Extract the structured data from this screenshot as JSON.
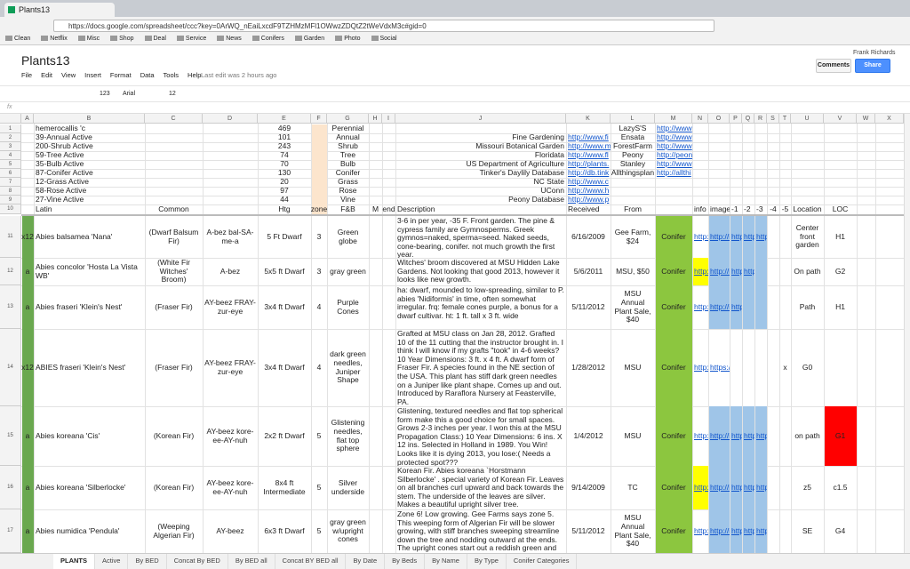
{
  "browser": {
    "tab": "Plants13",
    "url": "https://docs.google.com/spreadsheet/ccc?key=0ArWQ_nEaiLxcdF9TZHMzMFl1OWwzZDQtZ2tWeVdxM3c#gid=0",
    "bookmarks": [
      "Clean",
      "Netflix",
      "Misc",
      "Shop",
      "Deal",
      "Service",
      "News",
      "Conifers",
      "Garden",
      "Photo",
      "Social"
    ]
  },
  "header": {
    "title": "Plants13",
    "menu": [
      "File",
      "Edit",
      "View",
      "Insert",
      "Format",
      "Data",
      "Tools",
      "Help"
    ],
    "last_edit": "Last edit was 2 hours ago",
    "user": "Frank Richards",
    "comments": "Comments",
    "share": "Share"
  },
  "toolbar": {
    "number_format": "123",
    "font": "Arial",
    "font_size": "12",
    "formula_label": "fx"
  },
  "columns": [
    "A",
    "B",
    "C",
    "D",
    "E",
    "F",
    "G",
    "H",
    "I",
    "J",
    "K",
    "L",
    "M",
    "N",
    "O",
    "P",
    "Q",
    "R",
    "S",
    "T",
    "U",
    "V",
    "W",
    "X"
  ],
  "rows": [
    {
      "number": "1",
      "cells": {
        "B": "hemerocallis 'c",
        "E": "469",
        "G": "Perennial",
        "L": "LazyS'S",
        "M": "http://www"
      }
    },
    {
      "number": "2",
      "cells": {
        "B": "39-Annual Active",
        "E": "101",
        "G": "Annual",
        "J": "Fine Gardening",
        "K": "http://www.fi",
        "L": "Ensata",
        "M": "http://www"
      }
    },
    {
      "number": "3",
      "cells": {
        "B": "200-Shrub Active",
        "E": "243",
        "G": "Shrub",
        "J": "Missouri Botanical Garden",
        "K": "http://www.m",
        "L": "ForestFarm",
        "M": "http://www"
      }
    },
    {
      "number": "4",
      "cells": {
        "B": "59-Tree Active",
        "E": "74",
        "G": "Tree",
        "J": "Floridata",
        "K": "http://www.fl",
        "L": "Peony",
        "M": "http://peon"
      }
    },
    {
      "number": "5",
      "cells": {
        "B": "35-Bulb Active",
        "E": "70",
        "G": "Bulb",
        "J": "US Department of Agriculture",
        "K": "http://plants.",
        "L": "Stanley",
        "M": "http://www"
      }
    },
    {
      "number": "6",
      "cells": {
        "B": "87-Conifer Active",
        "E": "130",
        "G": "Conifer",
        "J": "Tinker's Daylily Database",
        "K": "http://db.tink",
        "L": "Allthingsplan",
        "M": "http://allthi"
      }
    },
    {
      "number": "7",
      "cells": {
        "B": "12-Grass Active",
        "E": "20",
        "G": "Grass",
        "J": "NC State",
        "K": "http://www.c"
      }
    },
    {
      "number": "8",
      "cells": {
        "B": "58-Rose Active",
        "E": "97",
        "G": "Rose",
        "J": "UConn",
        "K": "http://www.h"
      }
    },
    {
      "number": "9",
      "cells": {
        "B": "27-Vine Active",
        "E": "44",
        "G": "Vine",
        "J": "Peony Database",
        "K": "http://www.p"
      }
    },
    {
      "number": "10",
      "cells": {
        "B": "Latin",
        "C": "Common",
        "E": "Htg",
        "F": "zone",
        "G": "F&B",
        "H": "M",
        "I": "end",
        "J": "Description",
        "K": "Received",
        "L": "From",
        "N": "info",
        "O": "image",
        "P": "-1",
        "Q": "-2",
        "R": "-3",
        "S": "-4",
        "T": "-5",
        "U": "Location",
        "V": "LOC"
      }
    },
    {
      "number": "11",
      "cells": {
        "A": "x12",
        "B": "Abies balsamea 'Nana'",
        "C": "(Dwarf Balsum Fir)",
        "D": "A-bez bal-SA-me-a",
        "E": "5 Ft Dwarf",
        "F": "3",
        "G": "Green globe",
        "J": "3-6 in per year, -35 F. Front garden. The pine & cypress family are Gymnosperms. Greek gymnos=naked, sperma=seed. Naked seeds, cone-bearing, conifer. not much growth the first year.",
        "K": "6/16/2009",
        "L": "Gee Farm, $24",
        "M": "Conifer",
        "N": "http:",
        "O": "http://i",
        "P": "http",
        "Q": "http",
        "R": "http",
        "U": "Center front garden",
        "V": "H1"
      }
    },
    {
      "number": "12",
      "cells": {
        "A": "a",
        "B": "Abies concolor 'Hosta La Vista WB'",
        "C": "(White Fir Witches' Broom)",
        "D": "A-bez",
        "E": "5x5 ft Dwarf",
        "F": "3",
        "G": "gray green",
        "J": "Witches' broom discovered at MSU Hidden Lake Gardens. Not looking that good 2013, however it looks like new growth.",
        "K": "5/6/2011",
        "L": "MSU, $50",
        "M": "Conifer",
        "N": "http:",
        "O": "http://i",
        "P": "http",
        "Q": "http",
        "U": "On path",
        "V": "G2"
      }
    },
    {
      "number": "13",
      "cells": {
        "A": "a",
        "B": "Abies fraseri 'Klein's Nest'",
        "C": "(Fraser Fir)",
        "D": "AY-beez FRAY-zur-eye",
        "E": "3x4 ft Dwarf",
        "F": "4",
        "G": "Purple Cones",
        "J": "ha: dwarf, mounded to low-spreading, similar to P. abies 'Nidiformis' in time, often somewhat irregular. frq: female cones purple, a bonus for a dwarf cultivar. ht: 1 ft. tall x 3 ft. wide",
        "K": "5/11/2012",
        "L": "MSU Annual Plant Sale, $40",
        "M": "Conifer",
        "N": "http:",
        "O": "http://i",
        "P": "http",
        "U": "Path",
        "V": "H1"
      }
    },
    {
      "number": "14",
      "cells": {
        "A": "x12",
        "B": "ABIES fraseri 'Klein's Nest'",
        "C": "(Fraser Fir)",
        "D": "AY-beez FRAY-zur-eye",
        "E": "3x4 ft Dwarf",
        "F": "4",
        "G": "dark green needles, Juniper Shape",
        "J": "Grafted at MSU class on Jan 28, 2012. Grafted 10 of the 11 cutting that the instructor brought in. I think I will know if my grafts \"took\" in 4-6 weeks? 10 Year Dimensions: 3 ft. x 4 ft. A dwarf form of Fraser Fir. A species found in the NE section of the USA. This plant has stiff dark green needles on a Juniper like plant shape. Comes up and out. Introduced by Raraflora Nursery at Feasterville, PA.",
        "K": "1/28/2012",
        "L": "MSU",
        "M": "Conifer",
        "N": "http:",
        "O": "https:/",
        "T": "x",
        "U": "G0"
      }
    },
    {
      "number": "15",
      "cells": {
        "A": "a",
        "B": "Abies koreana 'Cis'",
        "C": "(Korean Fir)",
        "D": "AY-beez kore-ee-AY-nuh",
        "E": "2x2 ft Dwarf",
        "F": "5",
        "G": "Glistening needles, flat top sphere",
        "J": "Glistening, textured needles and flat top spherical form make this a good choice for small spaces. Grows 2-3 inches per year. I won this at the MSU Propagation Class:) 10 Year Dimensions: 6 ins. X 12 ins. Selected in Holland in 1989. You Win! Looks like it is dying 2013, you lose:( Needs a protected spot???",
        "K": "1/4/2012",
        "L": "MSU",
        "M": "Conifer",
        "N": "http:",
        "O": "http://i",
        "P": "http",
        "Q": "http",
        "R": "http",
        "U": "on path",
        "V": "G1"
      }
    },
    {
      "number": "16",
      "cells": {
        "A": "a",
        "B": "Abies koreana 'Silberlocke'",
        "C": "(Korean Fir)",
        "D": "AY-beez kore-ee-AY-nuh",
        "E": "8x4 ft Intermediate",
        "F": "5",
        "G": "Silver underside",
        "J": "Korean Fir. Abies koreana `Horstmann Silberlocke' . special variety of Korean Fir. Leaves on all branches curl upward and back towards the stem. The underside of the leaves are silver. Makes a beautiful upright silver tree.",
        "K": "9/14/2009",
        "L": "TC",
        "M": "Conifer",
        "N": "http:",
        "O": "http://i",
        "P": "http",
        "Q": "http",
        "R": "http",
        "U": "z5",
        "V": "c1.5"
      }
    },
    {
      "number": "17",
      "cells": {
        "A": "a",
        "B": "Abies numidica 'Pendula'",
        "C": "(Weeping Algerian Fir)",
        "D": "AY-beez",
        "E": "6x3 ft Dwarf",
        "F": "5",
        "G": "gray green w/upright cones",
        "J": "Zone 6! Low growing. Gee Farms says zone 5. This weeping form of Algerian Fir will be slower growing, with stiff branches sweeping streamline down the tree and nodding outward at the ends. The upright cones start out a reddish green and",
        "K": "5/11/2012",
        "L": "MSU Annual Plant Sale, $40",
        "M": "Conifer",
        "N": "http:",
        "O": "http://i",
        "P": "http",
        "Q": "http",
        "R": "http",
        "U": "SE",
        "V": "G4"
      }
    }
  ],
  "sheet_tabs": [
    "PLANTS",
    "Active",
    "By BED",
    "Concat By BED",
    "By BED all",
    "Concat BY BED all",
    "By Date",
    "By Beds",
    "By Name",
    "By Type",
    "Conifer Categories"
  ]
}
